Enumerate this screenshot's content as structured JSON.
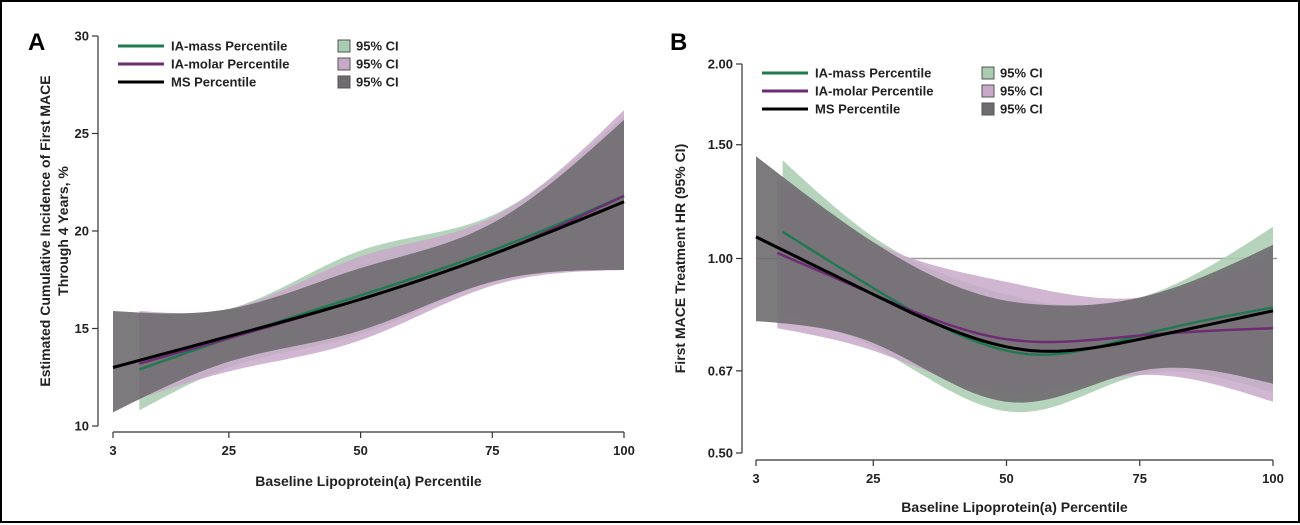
{
  "colors": {
    "ia_mass": "#1f7a4f",
    "ia_molar": "#6e2a72",
    "ms": "#000000",
    "band_mass": "#a9ccb0",
    "band_molar": "#c9a9c9",
    "band_ms": "#6f6c70",
    "reference_line": "#9a9a9a"
  },
  "legend": {
    "ia_mass": "IA-mass Percentile",
    "ia_molar": "IA-molar Percentile",
    "ms": "MS Percentile",
    "ci": "95% CI"
  },
  "chart_data": [
    {
      "panel": "A",
      "type": "line",
      "xlabel": "Baseline Lipoprotein(a) Percentile",
      "ylabel": [
        "Estimated Cumulative Incidence of First MACE",
        "Through 4 Years, %"
      ],
      "xlim": [
        3,
        100
      ],
      "ylim": [
        10,
        30
      ],
      "x_ticks": [
        3,
        25,
        50,
        75,
        100
      ],
      "y_ticks": [
        10,
        15,
        20,
        25,
        30
      ],
      "y_scale": "linear",
      "legend_position": "top-left",
      "series": [
        {
          "name": "IA-mass Percentile",
          "ci_name": "95% CI",
          "key": "ia_mass",
          "x": [
            8,
            25,
            50,
            75,
            100
          ],
          "y": [
            12.9,
            14.5,
            16.7,
            19.0,
            21.8
          ],
          "ci_lower": [
            10.8,
            13.0,
            14.7,
            17.4,
            18.1
          ],
          "ci_upper": [
            15.7,
            16.0,
            19.0,
            20.8,
            25.9
          ]
        },
        {
          "name": "IA-molar Percentile",
          "ci_name": "95% CI",
          "key": "ia_molar",
          "x": [
            8,
            25,
            50,
            75,
            100
          ],
          "y": [
            13.2,
            14.5,
            16.5,
            18.8,
            21.8
          ],
          "ci_lower": [
            11.4,
            12.8,
            14.4,
            17.2,
            18.0
          ],
          "ci_upper": [
            15.9,
            16.0,
            18.7,
            20.7,
            26.2
          ]
        },
        {
          "name": "MS Percentile",
          "ci_name": "95% CI",
          "key": "ms",
          "x": [
            3,
            25,
            50,
            75,
            100
          ],
          "y": [
            13.0,
            14.6,
            16.5,
            18.8,
            21.5
          ],
          "ci_lower": [
            10.7,
            13.3,
            14.9,
            17.4,
            18.0
          ],
          "ci_upper": [
            15.9,
            16.0,
            18.1,
            20.4,
            25.7
          ]
        }
      ]
    },
    {
      "panel": "B",
      "type": "line",
      "xlabel": "Baseline Lipoprotein(a) Percentile",
      "ylabel": [
        "First MACE Treatment HR (95% CI)"
      ],
      "xlim": [
        3,
        100
      ],
      "ylim": [
        0.5,
        2.0
      ],
      "x_ticks": [
        3,
        25,
        50,
        75,
        100
      ],
      "y_ticks": [
        0.5,
        0.67,
        1.0,
        1.5,
        2.0
      ],
      "y_tick_labels": [
        "0.50",
        "0.67",
        "1.00",
        "1.50",
        "2.00"
      ],
      "y_scale": "log",
      "reference_line": 1.0,
      "legend_position": "top-left",
      "series": [
        {
          "name": "IA-mass Percentile",
          "ci_name": "95% CI",
          "key": "ia_mass",
          "x": [
            8,
            25,
            50,
            55,
            75,
            100
          ],
          "y": [
            1.1,
            0.9,
            0.72,
            0.71,
            0.76,
            0.84
          ],
          "ci_lower": [
            0.82,
            0.73,
            0.58,
            0.58,
            0.66,
            0.62
          ],
          "ci_upper": [
            1.42,
            1.08,
            0.88,
            0.86,
            0.87,
            1.12
          ]
        },
        {
          "name": "IA-molar Percentile",
          "ci_name": "95% CI",
          "key": "ia_molar",
          "x": [
            7,
            25,
            50,
            75,
            100
          ],
          "y": [
            1.02,
            0.88,
            0.75,
            0.76,
            0.78
          ],
          "ci_lower": [
            0.78,
            0.72,
            0.62,
            0.66,
            0.6
          ],
          "ci_upper": [
            1.33,
            1.06,
            0.92,
            0.87,
            1.02
          ]
        },
        {
          "name": "MS Percentile",
          "ci_name": "95% CI",
          "key": "ms",
          "x": [
            3,
            25,
            50,
            55,
            75,
            100
          ],
          "y": [
            1.08,
            0.88,
            0.73,
            0.72,
            0.75,
            0.83
          ],
          "ci_lower": [
            0.8,
            0.74,
            0.6,
            0.6,
            0.67,
            0.64
          ],
          "ci_upper": [
            1.44,
            1.06,
            0.86,
            0.85,
            0.87,
            1.05
          ]
        }
      ]
    }
  ]
}
